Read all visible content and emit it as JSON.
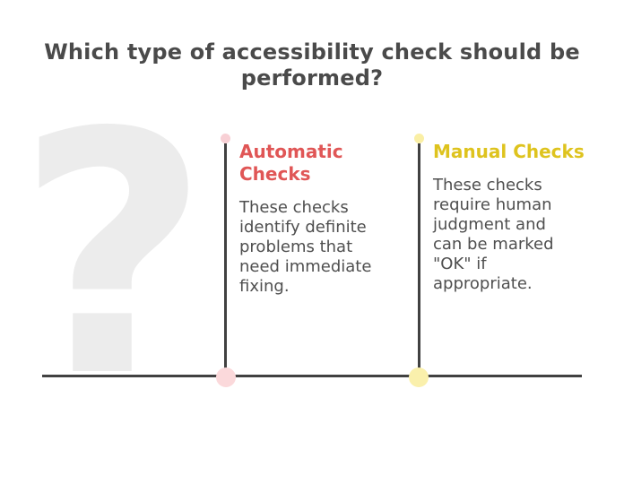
{
  "slide": {
    "title": "Which type of accessibility check should be\nperformed?",
    "background_glyph": "?",
    "colors": {
      "title_text": "#4a4a4a",
      "body_text": "#4f4f4f",
      "question_mark": "#ececec",
      "line": "#414141",
      "automatic_accent": "#e05656",
      "manual_accent": "#dec31e",
      "automatic_dot_small": "#f8d0d5",
      "automatic_dot_large": "#fbd9db",
      "manual_dot_small": "#faefa5",
      "manual_dot_large": "#faf0ac"
    }
  },
  "columns": [
    {
      "id": "automatic-checks",
      "heading": "Automatic\nChecks",
      "body": "These checks\nidentify definite\nproblems that\nneed immediate\nfixing."
    },
    {
      "id": "manual-checks",
      "heading": "Manual Checks",
      "body": "These checks\nrequire human\njudgment and\ncan be marked\n\"OK\" if\nappropriate."
    }
  ]
}
